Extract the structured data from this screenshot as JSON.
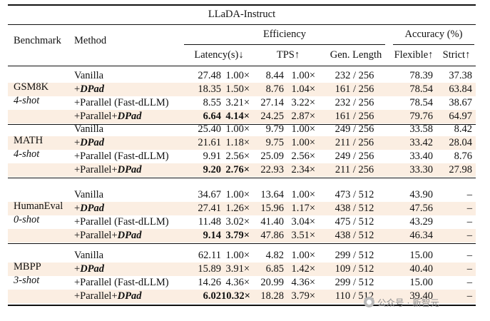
{
  "title": "LLaDA-Instruct",
  "headers": {
    "benchmark": "Benchmark",
    "method": "Method",
    "efficiency": "Efficiency",
    "accuracy": "Accuracy (%)",
    "latency": "Latency(s)↓",
    "tps": "TPS↑",
    "gen_length": "Gen. Length",
    "flexible": "Flexible↑",
    "strict": "Strict↑"
  },
  "groups": [
    {
      "benchmark": "GSM8K",
      "shot": "4-shot",
      "rows": [
        {
          "prefix": "",
          "dpad": "",
          "name": "Vanilla",
          "lat": "27.48",
          "lat_x": "1.00×",
          "tps": "8.44",
          "tps_x": "1.00×",
          "len": "232 / 256",
          "flex": "78.39",
          "strict": "37.38"
        },
        {
          "prefix": "+",
          "dpad": "DPad",
          "name": "",
          "lat": "18.35",
          "lat_x": "1.50×",
          "tps": "8.76",
          "tps_x": "1.04×",
          "len": "161 / 256",
          "flex": "78.54",
          "strict": "63.84"
        },
        {
          "prefix": "",
          "dpad": "",
          "name": "+Parallel (Fast-dLLM)",
          "lat": "8.55",
          "lat_x": "3.21×",
          "tps": "27.14",
          "tps_x": "3.22×",
          "len": "232 / 256",
          "flex": "78.54",
          "strict": "38.67"
        },
        {
          "prefix": "+Parallel+",
          "dpad": "DPad",
          "name": "",
          "lat": "6.64",
          "lat_x": "4.14×",
          "tps": "24.25",
          "tps_x": "2.87×",
          "len": "161 / 256",
          "flex": "79.76",
          "strict": "64.97"
        }
      ]
    },
    {
      "benchmark": "MATH",
      "shot": "4-shot",
      "rows": [
        {
          "prefix": "",
          "dpad": "",
          "name": "Vanilla",
          "lat": "25.40",
          "lat_x": "1.00×",
          "tps": "9.79",
          "tps_x": "1.00×",
          "len": "249 / 256",
          "flex": "33.58",
          "strict": "8.42"
        },
        {
          "prefix": "+",
          "dpad": "DPad",
          "name": "",
          "lat": "21.61",
          "lat_x": "1.18×",
          "tps": "9.75",
          "tps_x": "1.00×",
          "len": "211 / 256",
          "flex": "33.42",
          "strict": "28.04"
        },
        {
          "prefix": "",
          "dpad": "",
          "name": "+Parallel (Fast-dLLM)",
          "lat": "9.91",
          "lat_x": "2.56×",
          "tps": "25.09",
          "tps_x": "2.56×",
          "len": "249 / 256",
          "flex": "33.40",
          "strict": "8.76"
        },
        {
          "prefix": "+Parallel+",
          "dpad": "DPad",
          "name": "",
          "lat": "9.20",
          "lat_x": "2.76×",
          "tps": "22.93",
          "tps_x": "2.34×",
          "len": "211 / 256",
          "flex": "33.30",
          "strict": "27.98"
        }
      ]
    },
    {
      "benchmark": "HumanEval",
      "shot": "0-shot",
      "rows": [
        {
          "prefix": "",
          "dpad": "",
          "name": "Vanilla",
          "lat": "34.67",
          "lat_x": "1.00×",
          "tps": "13.64",
          "tps_x": "1.00×",
          "len": "473 / 512",
          "flex": "43.90",
          "strict": "–"
        },
        {
          "prefix": "+",
          "dpad": "DPad",
          "name": "",
          "lat": "27.41",
          "lat_x": "1.26×",
          "tps": "15.96",
          "tps_x": "1.17×",
          "len": "438 / 512",
          "flex": "47.56",
          "strict": "–"
        },
        {
          "prefix": "",
          "dpad": "",
          "name": "+Parallel (Fast-dLLM)",
          "lat": "11.48",
          "lat_x": "3.02×",
          "tps": "41.40",
          "tps_x": "3.04×",
          "len": "475 / 512",
          "flex": "43.29",
          "strict": "–"
        },
        {
          "prefix": "+Parallel+",
          "dpad": "DPad",
          "name": "",
          "lat": "9.14",
          "lat_x": "3.79×",
          "tps": "47.86",
          "tps_x": "3.51×",
          "len": "438 / 512",
          "flex": "46.34",
          "strict": "–"
        }
      ]
    },
    {
      "benchmark": "MBPP",
      "shot": "3-shot",
      "rows": [
        {
          "prefix": "",
          "dpad": "",
          "name": "Vanilla",
          "lat": "62.11",
          "lat_x": "1.00×",
          "tps": "4.82",
          "tps_x": "1.00×",
          "len": "299 / 512",
          "flex": "15.00",
          "strict": "–"
        },
        {
          "prefix": "+",
          "dpad": "DPad",
          "name": "",
          "lat": "15.89",
          "lat_x": "3.91×",
          "tps": "6.85",
          "tps_x": "1.42×",
          "len": "109 / 512",
          "flex": "40.40",
          "strict": "–"
        },
        {
          "prefix": "",
          "dpad": "",
          "name": "+Parallel (Fast-dLLM)",
          "lat": "14.26",
          "lat_x": "4.36×",
          "tps": "20.99",
          "tps_x": "4.36×",
          "len": "299 / 512",
          "flex": "15.00",
          "strict": "–"
        },
        {
          "prefix": "+Parallel+",
          "dpad": "DPad",
          "name": "",
          "lat": "6.02",
          "lat_x": "10.32×",
          "tps": "18.28",
          "tps_x": "3.79×",
          "len": "110 / 512",
          "flex": "39.40",
          "strict": "–"
        }
      ]
    }
  ],
  "watermark": "公众号 · 新智元"
}
